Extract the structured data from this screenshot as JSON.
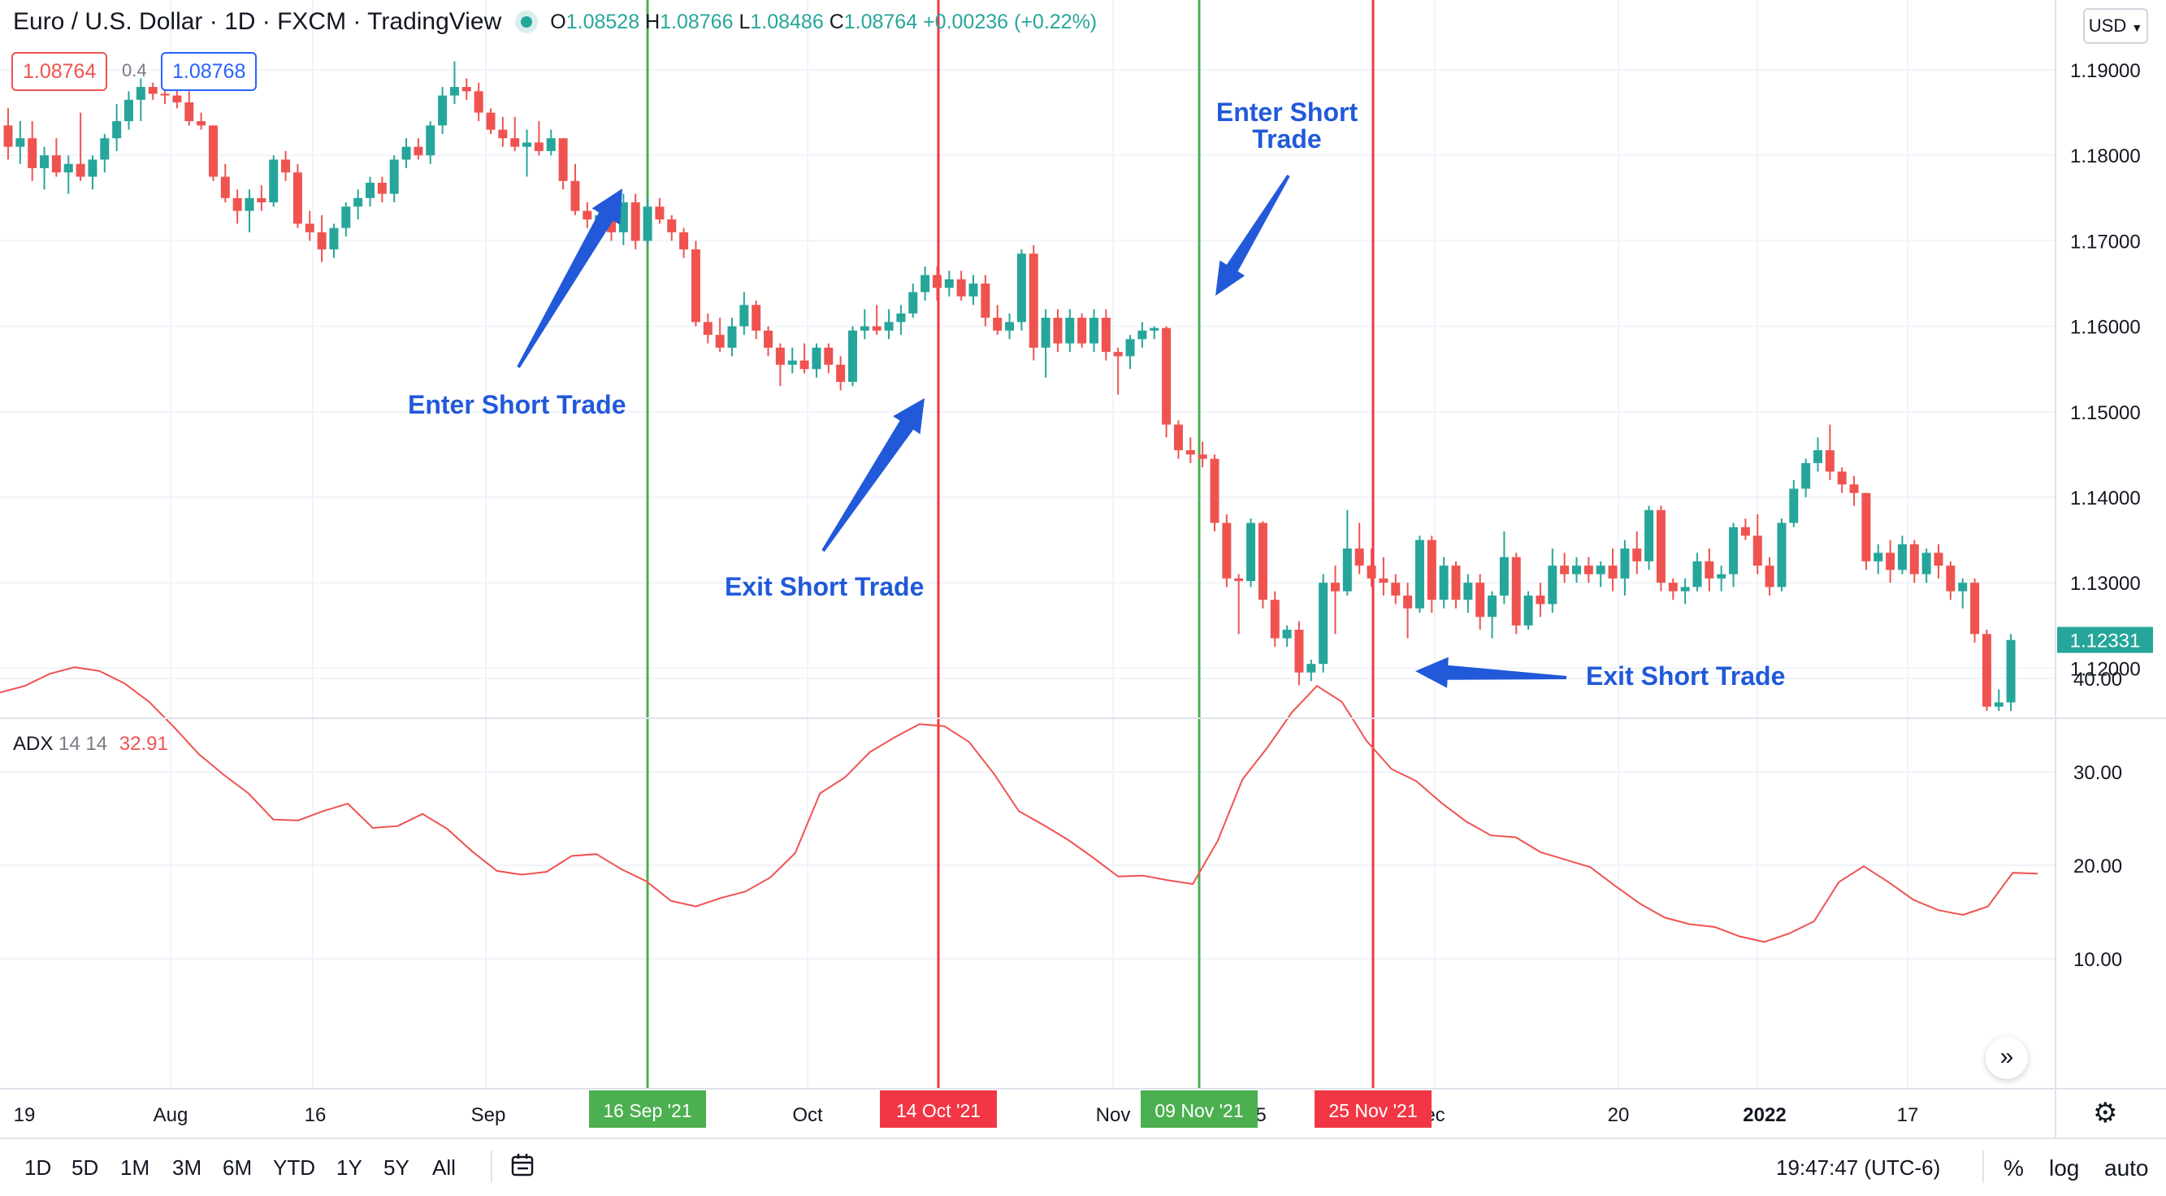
{
  "header": {
    "symbol_title": "Euro / U.S. Dollar · 1D · FXCM · TradingView",
    "ohlc": [
      {
        "k": "O",
        "v": "1.08528"
      },
      {
        "k": "H",
        "v": "1.08766"
      },
      {
        "k": "L",
        "v": "1.08486"
      },
      {
        "k": "C",
        "v": "1.08764"
      }
    ],
    "change": "+0.00236 (+0.22%)",
    "sell_price": "1.08764",
    "buy_price": "1.08768",
    "spread": "0.4",
    "currency": "USD"
  },
  "adx_legend": {
    "name": "ADX",
    "params": "14 14",
    "value": "32.91"
  },
  "price_axis_labels": [
    "1.19000",
    "1.18000",
    "1.17000",
    "1.16000",
    "1.15000",
    "1.14000",
    "1.13000",
    "1.12000"
  ],
  "last_price_tag": "1.12331",
  "adx_axis_labels": [
    "40.00",
    "30.00",
    "20.00",
    "10.00"
  ],
  "time_axis_labels": [
    "19",
    "Aug",
    "16",
    "Sep",
    "Oct",
    "Nov",
    "5",
    "ec",
    "20",
    "2022",
    "17"
  ],
  "marker_dates": [
    "16 Sep '21",
    "14 Oct '21",
    "09 Nov '21",
    "25 Nov '21"
  ],
  "annotations": {
    "enter1": "Enter Short Trade",
    "exit1": "Exit Short Trade",
    "enter2": "Enter Short Trade",
    "exit2": "Exit Short Trade"
  },
  "timeframes": [
    "1D",
    "5D",
    "1M",
    "3M",
    "6M",
    "YTD",
    "1Y",
    "5Y",
    "All"
  ],
  "clock": "19:47:47 (UTC-6)",
  "right_buttons": {
    "percent": "%",
    "log": "log",
    "auto": "auto"
  },
  "colors": {
    "up": "#26a69a",
    "down": "#ef5350",
    "adx": "#ef5350",
    "enter_line": "#4caf50",
    "exit_line": "#f23645",
    "annotation": "#2159d9"
  },
  "chart_data": {
    "type": "candlestick",
    "price_range": [
      1.115,
      1.19
    ],
    "candles": [
      {
        "o": 1.1835,
        "h": 1.1855,
        "l": 1.1795,
        "c": 1.181
      },
      {
        "o": 1.181,
        "h": 1.184,
        "l": 1.179,
        "c": 1.182
      },
      {
        "o": 1.182,
        "h": 1.184,
        "l": 1.177,
        "c": 1.1785
      },
      {
        "o": 1.1785,
        "h": 1.181,
        "l": 1.176,
        "c": 1.18
      },
      {
        "o": 1.18,
        "h": 1.182,
        "l": 1.1775,
        "c": 1.178
      },
      {
        "o": 1.178,
        "h": 1.18,
        "l": 1.1755,
        "c": 1.179
      },
      {
        "o": 1.179,
        "h": 1.185,
        "l": 1.177,
        "c": 1.1775
      },
      {
        "o": 1.1775,
        "h": 1.18,
        "l": 1.176,
        "c": 1.1795
      },
      {
        "o": 1.1795,
        "h": 1.1825,
        "l": 1.178,
        "c": 1.182
      },
      {
        "o": 1.182,
        "h": 1.186,
        "l": 1.1805,
        "c": 1.184
      },
      {
        "o": 1.184,
        "h": 1.1875,
        "l": 1.183,
        "c": 1.1865
      },
      {
        "o": 1.1865,
        "h": 1.189,
        "l": 1.184,
        "c": 1.188
      },
      {
        "o": 1.188,
        "h": 1.1885,
        "l": 1.1865,
        "c": 1.1872
      },
      {
        "o": 1.1872,
        "h": 1.188,
        "l": 1.186,
        "c": 1.187
      },
      {
        "o": 1.187,
        "h": 1.188,
        "l": 1.1855,
        "c": 1.1862
      },
      {
        "o": 1.1862,
        "h": 1.1875,
        "l": 1.1835,
        "c": 1.184
      },
      {
        "o": 1.184,
        "h": 1.185,
        "l": 1.183,
        "c": 1.1835
      },
      {
        "o": 1.1835,
        "h": 1.1835,
        "l": 1.177,
        "c": 1.1775
      },
      {
        "o": 1.1775,
        "h": 1.179,
        "l": 1.1745,
        "c": 1.175
      },
      {
        "o": 1.175,
        "h": 1.176,
        "l": 1.172,
        "c": 1.1735
      },
      {
        "o": 1.1735,
        "h": 1.176,
        "l": 1.171,
        "c": 1.175
      },
      {
        "o": 1.175,
        "h": 1.1765,
        "l": 1.1735,
        "c": 1.1745
      },
      {
        "o": 1.1745,
        "h": 1.18,
        "l": 1.174,
        "c": 1.1795
      },
      {
        "o": 1.1795,
        "h": 1.1805,
        "l": 1.177,
        "c": 1.178
      },
      {
        "o": 1.178,
        "h": 1.179,
        "l": 1.1715,
        "c": 1.172
      },
      {
        "o": 1.172,
        "h": 1.1735,
        "l": 1.17,
        "c": 1.171
      },
      {
        "o": 1.171,
        "h": 1.173,
        "l": 1.1675,
        "c": 1.169
      },
      {
        "o": 1.169,
        "h": 1.172,
        "l": 1.168,
        "c": 1.1715
      },
      {
        "o": 1.1715,
        "h": 1.1745,
        "l": 1.1705,
        "c": 1.174
      },
      {
        "o": 1.174,
        "h": 1.176,
        "l": 1.1725,
        "c": 1.175
      },
      {
        "o": 1.175,
        "h": 1.1775,
        "l": 1.174,
        "c": 1.1768
      },
      {
        "o": 1.1768,
        "h": 1.1775,
        "l": 1.1745,
        "c": 1.1755
      },
      {
        "o": 1.1755,
        "h": 1.18,
        "l": 1.1745,
        "c": 1.1795
      },
      {
        "o": 1.1795,
        "h": 1.182,
        "l": 1.1785,
        "c": 1.181
      },
      {
        "o": 1.181,
        "h": 1.182,
        "l": 1.1795,
        "c": 1.18
      },
      {
        "o": 1.18,
        "h": 1.184,
        "l": 1.179,
        "c": 1.1835
      },
      {
        "o": 1.1835,
        "h": 1.188,
        "l": 1.1825,
        "c": 1.187
      },
      {
        "o": 1.187,
        "h": 1.191,
        "l": 1.186,
        "c": 1.188
      },
      {
        "o": 1.188,
        "h": 1.189,
        "l": 1.1865,
        "c": 1.1875
      },
      {
        "o": 1.1875,
        "h": 1.1885,
        "l": 1.184,
        "c": 1.185
      },
      {
        "o": 1.185,
        "h": 1.1855,
        "l": 1.1825,
        "c": 1.183
      },
      {
        "o": 1.183,
        "h": 1.1845,
        "l": 1.181,
        "c": 1.182
      },
      {
        "o": 1.182,
        "h": 1.1845,
        "l": 1.1805,
        "c": 1.181
      },
      {
        "o": 1.181,
        "h": 1.183,
        "l": 1.1775,
        "c": 1.1815
      },
      {
        "o": 1.1815,
        "h": 1.184,
        "l": 1.18,
        "c": 1.1805
      },
      {
        "o": 1.1805,
        "h": 1.183,
        "l": 1.18,
        "c": 1.182
      },
      {
        "o": 1.182,
        "h": 1.182,
        "l": 1.176,
        "c": 1.177
      },
      {
        "o": 1.177,
        "h": 1.179,
        "l": 1.173,
        "c": 1.1735
      },
      {
        "o": 1.1735,
        "h": 1.1745,
        "l": 1.1715,
        "c": 1.1725
      },
      {
        "o": 1.1725,
        "h": 1.174,
        "l": 1.171,
        "c": 1.173
      },
      {
        "o": 1.173,
        "h": 1.175,
        "l": 1.17,
        "c": 1.171
      },
      {
        "o": 1.171,
        "h": 1.1755,
        "l": 1.1695,
        "c": 1.1745
      },
      {
        "o": 1.1745,
        "h": 1.1755,
        "l": 1.169,
        "c": 1.17
      },
      {
        "o": 1.17,
        "h": 1.175,
        "l": 1.1695,
        "c": 1.174
      },
      {
        "o": 1.174,
        "h": 1.175,
        "l": 1.172,
        "c": 1.1725
      },
      {
        "o": 1.1725,
        "h": 1.173,
        "l": 1.17,
        "c": 1.171
      },
      {
        "o": 1.171,
        "h": 1.1715,
        "l": 1.168,
        "c": 1.169
      },
      {
        "o": 1.169,
        "h": 1.17,
        "l": 1.16,
        "c": 1.1605
      },
      {
        "o": 1.1605,
        "h": 1.1615,
        "l": 1.158,
        "c": 1.159
      },
      {
        "o": 1.159,
        "h": 1.161,
        "l": 1.157,
        "c": 1.1575
      },
      {
        "o": 1.1575,
        "h": 1.161,
        "l": 1.1565,
        "c": 1.16
      },
      {
        "o": 1.16,
        "h": 1.164,
        "l": 1.159,
        "c": 1.1625
      },
      {
        "o": 1.1625,
        "h": 1.163,
        "l": 1.1585,
        "c": 1.1595
      },
      {
        "o": 1.1595,
        "h": 1.16,
        "l": 1.1565,
        "c": 1.1575
      },
      {
        "o": 1.1575,
        "h": 1.158,
        "l": 1.153,
        "c": 1.1555
      },
      {
        "o": 1.1555,
        "h": 1.1575,
        "l": 1.1545,
        "c": 1.156
      },
      {
        "o": 1.156,
        "h": 1.158,
        "l": 1.1545,
        "c": 1.155
      },
      {
        "o": 1.155,
        "h": 1.158,
        "l": 1.154,
        "c": 1.1575
      },
      {
        "o": 1.1575,
        "h": 1.158,
        "l": 1.1545,
        "c": 1.1555
      },
      {
        "o": 1.1555,
        "h": 1.1565,
        "l": 1.1525,
        "c": 1.1535
      },
      {
        "o": 1.1535,
        "h": 1.16,
        "l": 1.153,
        "c": 1.1595
      },
      {
        "o": 1.1595,
        "h": 1.162,
        "l": 1.1585,
        "c": 1.16
      },
      {
        "o": 1.16,
        "h": 1.1625,
        "l": 1.159,
        "c": 1.1595
      },
      {
        "o": 1.1595,
        "h": 1.162,
        "l": 1.1585,
        "c": 1.1605
      },
      {
        "o": 1.1605,
        "h": 1.1625,
        "l": 1.159,
        "c": 1.1615
      },
      {
        "o": 1.1615,
        "h": 1.165,
        "l": 1.161,
        "c": 1.164
      },
      {
        "o": 1.164,
        "h": 1.167,
        "l": 1.163,
        "c": 1.166
      },
      {
        "o": 1.166,
        "h": 1.167,
        "l": 1.163,
        "c": 1.1645
      },
      {
        "o": 1.1645,
        "h": 1.1665,
        "l": 1.1635,
        "c": 1.1655
      },
      {
        "o": 1.1655,
        "h": 1.1665,
        "l": 1.163,
        "c": 1.1635
      },
      {
        "o": 1.1635,
        "h": 1.166,
        "l": 1.1625,
        "c": 1.165
      },
      {
        "o": 1.165,
        "h": 1.166,
        "l": 1.16,
        "c": 1.161
      },
      {
        "o": 1.161,
        "h": 1.1625,
        "l": 1.159,
        "c": 1.1595
      },
      {
        "o": 1.1595,
        "h": 1.1615,
        "l": 1.1585,
        "c": 1.1605
      },
      {
        "o": 1.1605,
        "h": 1.169,
        "l": 1.1595,
        "c": 1.1685
      },
      {
        "o": 1.1685,
        "h": 1.1695,
        "l": 1.156,
        "c": 1.1575
      },
      {
        "o": 1.1575,
        "h": 1.162,
        "l": 1.154,
        "c": 1.161
      },
      {
        "o": 1.161,
        "h": 1.162,
        "l": 1.157,
        "c": 1.158
      },
      {
        "o": 1.158,
        "h": 1.162,
        "l": 1.157,
        "c": 1.161
      },
      {
        "o": 1.161,
        "h": 1.1615,
        "l": 1.1575,
        "c": 1.158
      },
      {
        "o": 1.158,
        "h": 1.162,
        "l": 1.157,
        "c": 1.161
      },
      {
        "o": 1.161,
        "h": 1.162,
        "l": 1.156,
        "c": 1.157
      },
      {
        "o": 1.157,
        "h": 1.1575,
        "l": 1.152,
        "c": 1.1565
      },
      {
        "o": 1.1565,
        "h": 1.159,
        "l": 1.155,
        "c": 1.1585
      },
      {
        "o": 1.1585,
        "h": 1.1605,
        "l": 1.1575,
        "c": 1.1595
      },
      {
        "o": 1.1595,
        "h": 1.16,
        "l": 1.1585,
        "c": 1.1598
      },
      {
        "o": 1.1598,
        "h": 1.16,
        "l": 1.147,
        "c": 1.1485
      },
      {
        "o": 1.1485,
        "h": 1.149,
        "l": 1.1445,
        "c": 1.1455
      },
      {
        "o": 1.1455,
        "h": 1.147,
        "l": 1.144,
        "c": 1.145
      },
      {
        "o": 1.145,
        "h": 1.1465,
        "l": 1.1435,
        "c": 1.1445
      },
      {
        "o": 1.1445,
        "h": 1.145,
        "l": 1.136,
        "c": 1.137
      },
      {
        "o": 1.137,
        "h": 1.138,
        "l": 1.1295,
        "c": 1.1305
      },
      {
        "o": 1.1305,
        "h": 1.131,
        "l": 1.124,
        "c": 1.1302
      },
      {
        "o": 1.1302,
        "h": 1.1375,
        "l": 1.1295,
        "c": 1.137
      },
      {
        "o": 1.137,
        "h": 1.1372,
        "l": 1.127,
        "c": 1.128
      },
      {
        "o": 1.128,
        "h": 1.129,
        "l": 1.1225,
        "c": 1.1235
      },
      {
        "o": 1.1235,
        "h": 1.125,
        "l": 1.1225,
        "c": 1.1245
      },
      {
        "o": 1.1245,
        "h": 1.1255,
        "l": 1.118,
        "c": 1.1195
      },
      {
        "o": 1.1195,
        "h": 1.121,
        "l": 1.1185,
        "c": 1.1205
      },
      {
        "o": 1.1205,
        "h": 1.131,
        "l": 1.1195,
        "c": 1.13
      },
      {
        "o": 1.13,
        "h": 1.132,
        "l": 1.124,
        "c": 1.129
      },
      {
        "o": 1.129,
        "h": 1.1385,
        "l": 1.1285,
        "c": 1.134
      },
      {
        "o": 1.134,
        "h": 1.137,
        "l": 1.131,
        "c": 1.132
      },
      {
        "o": 1.132,
        "h": 1.134,
        "l": 1.1295,
        "c": 1.1305
      },
      {
        "o": 1.1305,
        "h": 1.133,
        "l": 1.1285,
        "c": 1.13
      },
      {
        "o": 1.13,
        "h": 1.131,
        "l": 1.1275,
        "c": 1.1285
      },
      {
        "o": 1.1285,
        "h": 1.13,
        "l": 1.1235,
        "c": 1.127
      },
      {
        "o": 1.127,
        "h": 1.1355,
        "l": 1.1265,
        "c": 1.135
      },
      {
        "o": 1.135,
        "h": 1.1355,
        "l": 1.1265,
        "c": 1.128
      },
      {
        "o": 1.128,
        "h": 1.133,
        "l": 1.127,
        "c": 1.132
      },
      {
        "o": 1.132,
        "h": 1.1325,
        "l": 1.127,
        "c": 1.128
      },
      {
        "o": 1.128,
        "h": 1.131,
        "l": 1.1265,
        "c": 1.13
      },
      {
        "o": 1.13,
        "h": 1.131,
        "l": 1.1245,
        "c": 1.126
      },
      {
        "o": 1.126,
        "h": 1.129,
        "l": 1.1235,
        "c": 1.1285
      },
      {
        "o": 1.1285,
        "h": 1.136,
        "l": 1.1275,
        "c": 1.133
      },
      {
        "o": 1.133,
        "h": 1.1335,
        "l": 1.124,
        "c": 1.125
      },
      {
        "o": 1.125,
        "h": 1.129,
        "l": 1.1245,
        "c": 1.1285
      },
      {
        "o": 1.1285,
        "h": 1.13,
        "l": 1.126,
        "c": 1.1275
      },
      {
        "o": 1.1275,
        "h": 1.134,
        "l": 1.1265,
        "c": 1.132
      },
      {
        "o": 1.132,
        "h": 1.1335,
        "l": 1.13,
        "c": 1.131
      },
      {
        "o": 1.131,
        "h": 1.133,
        "l": 1.13,
        "c": 1.132
      },
      {
        "o": 1.132,
        "h": 1.133,
        "l": 1.13,
        "c": 1.131
      },
      {
        "o": 1.131,
        "h": 1.1325,
        "l": 1.1295,
        "c": 1.132
      },
      {
        "o": 1.132,
        "h": 1.134,
        "l": 1.129,
        "c": 1.1305
      },
      {
        "o": 1.1305,
        "h": 1.135,
        "l": 1.1285,
        "c": 1.134
      },
      {
        "o": 1.134,
        "h": 1.136,
        "l": 1.131,
        "c": 1.1325
      },
      {
        "o": 1.1325,
        "h": 1.139,
        "l": 1.1315,
        "c": 1.1385
      },
      {
        "o": 1.1385,
        "h": 1.139,
        "l": 1.129,
        "c": 1.13
      },
      {
        "o": 1.13,
        "h": 1.1305,
        "l": 1.128,
        "c": 1.129
      },
      {
        "o": 1.129,
        "h": 1.1305,
        "l": 1.1275,
        "c": 1.1295
      },
      {
        "o": 1.1295,
        "h": 1.1335,
        "l": 1.129,
        "c": 1.1325
      },
      {
        "o": 1.1325,
        "h": 1.134,
        "l": 1.129,
        "c": 1.1305
      },
      {
        "o": 1.1305,
        "h": 1.132,
        "l": 1.129,
        "c": 1.131
      },
      {
        "o": 1.131,
        "h": 1.137,
        "l": 1.1295,
        "c": 1.1365
      },
      {
        "o": 1.1365,
        "h": 1.1375,
        "l": 1.135,
        "c": 1.1355
      },
      {
        "o": 1.1355,
        "h": 1.138,
        "l": 1.131,
        "c": 1.132
      },
      {
        "o": 1.132,
        "h": 1.133,
        "l": 1.1285,
        "c": 1.1295
      },
      {
        "o": 1.1295,
        "h": 1.1375,
        "l": 1.129,
        "c": 1.137
      },
      {
        "o": 1.137,
        "h": 1.142,
        "l": 1.1365,
        "c": 1.141
      },
      {
        "o": 1.141,
        "h": 1.1445,
        "l": 1.14,
        "c": 1.144
      },
      {
        "o": 1.144,
        "h": 1.147,
        "l": 1.143,
        "c": 1.1455
      },
      {
        "o": 1.1455,
        "h": 1.1485,
        "l": 1.142,
        "c": 1.143
      },
      {
        "o": 1.143,
        "h": 1.1435,
        "l": 1.1405,
        "c": 1.1415
      },
      {
        "o": 1.1415,
        "h": 1.1425,
        "l": 1.139,
        "c": 1.1405
      },
      {
        "o": 1.1405,
        "h": 1.1405,
        "l": 1.1315,
        "c": 1.1325
      },
      {
        "o": 1.1325,
        "h": 1.1345,
        "l": 1.131,
        "c": 1.1335
      },
      {
        "o": 1.1335,
        "h": 1.135,
        "l": 1.13,
        "c": 1.1315
      },
      {
        "o": 1.1315,
        "h": 1.1355,
        "l": 1.131,
        "c": 1.1345
      },
      {
        "o": 1.1345,
        "h": 1.135,
        "l": 1.13,
        "c": 1.131
      },
      {
        "o": 1.131,
        "h": 1.134,
        "l": 1.13,
        "c": 1.1335
      },
      {
        "o": 1.1335,
        "h": 1.1345,
        "l": 1.1305,
        "c": 1.132
      },
      {
        "o": 1.132,
        "h": 1.1325,
        "l": 1.128,
        "c": 1.129
      },
      {
        "o": 1.129,
        "h": 1.1305,
        "l": 1.127,
        "c": 1.13
      },
      {
        "o": 1.13,
        "h": 1.1305,
        "l": 1.123,
        "c": 1.124
      },
      {
        "o": 1.124,
        "h": 1.1245,
        "l": 1.115,
        "c": 1.1155
      },
      {
        "o": 1.1155,
        "h": 1.1175,
        "l": 1.115,
        "c": 1.116
      },
      {
        "o": 1.116,
        "h": 1.124,
        "l": 1.115,
        "c": 1.1233
      }
    ],
    "adx": [
      38.5,
      39.2,
      40.5,
      41.2,
      40.8,
      39.5,
      37.5,
      34.8,
      31.9,
      29.7,
      27.7,
      24.9,
      24.8,
      25.8,
      26.6,
      24.0,
      24.2,
      25.5,
      23.9,
      21.5,
      19.4,
      19.0,
      19.3,
      21.0,
      21.2,
      19.6,
      18.3,
      16.2,
      15.6,
      16.5,
      17.2,
      18.7,
      21.3,
      27.7,
      29.4,
      32.1,
      33.7,
      35.1,
      34.9,
      33.2,
      29.8,
      25.8,
      24.3,
      22.7,
      20.8,
      18.8,
      18.9,
      18.4,
      18.0,
      22.6,
      29.2,
      32.6,
      36.4,
      39.2,
      37.5,
      33.3,
      30.3,
      29.0,
      26.7,
      24.7,
      23.2,
      23.0,
      21.4,
      20.6,
      19.8,
      17.8,
      15.9,
      14.4,
      13.7,
      13.4,
      12.4,
      11.8,
      12.7,
      14.0,
      18.2,
      19.9,
      18.2,
      16.3,
      15.2,
      14.7,
      15.6,
      19.2,
      19.1
    ],
    "ylabel": "",
    "xlabel": ""
  }
}
